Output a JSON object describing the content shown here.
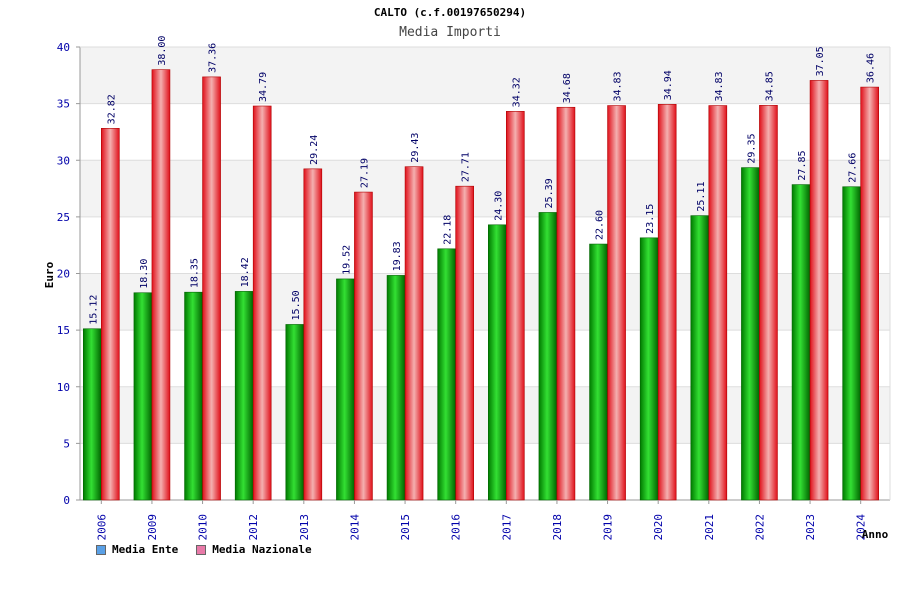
{
  "chart_data": {
    "type": "bar",
    "title": "CALTO (c.f.00197650294)",
    "subtitle": "Media Importi",
    "xlabel": "Anno",
    "ylabel": "Euro",
    "ylim": [
      0,
      40
    ],
    "yticks": [
      0,
      5,
      10,
      15,
      20,
      25,
      30,
      35,
      40
    ],
    "grid": true,
    "legend_position": "bottom-left",
    "categories": [
      "2006",
      "2009",
      "2010",
      "2012",
      "2013",
      "2014",
      "2015",
      "2016",
      "2017",
      "2018",
      "2019",
      "2020",
      "2021",
      "2022",
      "2023",
      "2024"
    ],
    "series": [
      {
        "name": "Media Ente",
        "color": "#00b000",
        "legend_color": "#5aa0e6",
        "values": [
          15.12,
          18.3,
          18.35,
          18.42,
          15.5,
          19.52,
          19.83,
          22.18,
          24.3,
          25.39,
          22.6,
          23.15,
          25.11,
          29.35,
          27.85,
          27.66
        ],
        "labels": [
          "15.12",
          "18.30",
          "18.35",
          "18.42",
          "15.50",
          "19.52",
          "19.83",
          "22.18",
          "24.30",
          "25.39",
          "22.60",
          "23.15",
          "25.11",
          "29.35",
          "27.85",
          "27.66"
        ]
      },
      {
        "name": "Media Nazionale",
        "color": "#e0101a",
        "legend_color": "#e87aa8",
        "values": [
          32.82,
          38.0,
          37.36,
          34.79,
          29.24,
          27.19,
          29.43,
          27.71,
          34.32,
          34.68,
          34.83,
          34.94,
          34.83,
          34.85,
          37.05,
          36.46
        ],
        "labels": [
          "32.82",
          "38.00",
          "37.36",
          "34.79",
          "29.24",
          "27.19",
          "29.43",
          "27.71",
          "34.32",
          "34.68",
          "34.83",
          "34.94",
          "34.83",
          "34.85",
          "37.05",
          "36.46"
        ]
      }
    ]
  }
}
